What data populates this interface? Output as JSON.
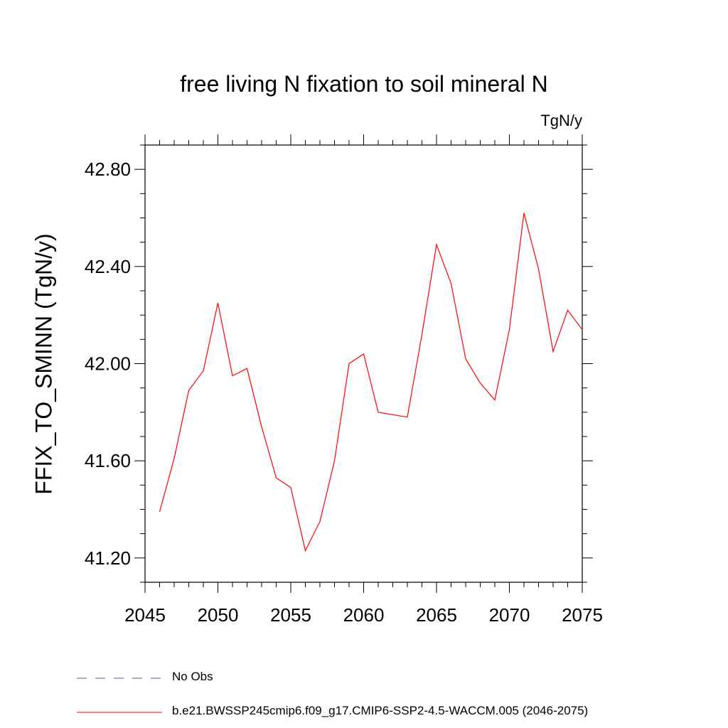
{
  "chart_data": {
    "type": "line",
    "title": "free living N fixation to soil mineral N",
    "units_label": "TgN/y",
    "ylabel": "FFIX_TO_SMINN  (TgN/y)",
    "xlabel": "",
    "xlim": [
      2045,
      2075
    ],
    "ylim": [
      41.1,
      42.9
    ],
    "x_ticks": [
      2045,
      2050,
      2055,
      2060,
      2065,
      2070,
      2075
    ],
    "y_ticks": [
      "41.20",
      "41.60",
      "42.00",
      "42.40",
      "42.80"
    ],
    "y_minor_step": 0.1,
    "x_minor_step": 1,
    "grid": false,
    "legend_position": "bottom",
    "series": [
      {
        "name": "No Obs",
        "color": "#5a5aa8",
        "dash": "dashed",
        "x": [],
        "y": []
      },
      {
        "name": "b.e21.BWSSP245cmip6.f09_g17.CMIP6-SSP2-4.5-WACCM.005 (2046-2075)",
        "color": "#ff0000",
        "dash": "solid",
        "x": [
          2046,
          2047,
          2048,
          2049,
          2050,
          2051,
          2052,
          2053,
          2054,
          2055,
          2056,
          2057,
          2058,
          2059,
          2060,
          2061,
          2062,
          2063,
          2064,
          2065,
          2066,
          2067,
          2068,
          2069,
          2070,
          2071,
          2072,
          2073,
          2074,
          2075
        ],
        "y": [
          41.39,
          41.61,
          41.89,
          41.97,
          42.25,
          41.95,
          41.98,
          41.74,
          41.53,
          41.49,
          41.23,
          41.35,
          41.6,
          42.0,
          42.04,
          41.8,
          41.79,
          41.78,
          42.12,
          42.49,
          42.33,
          42.02,
          41.92,
          41.85,
          42.14,
          42.62,
          42.39,
          42.05,
          42.22,
          42.14
        ]
      }
    ]
  }
}
